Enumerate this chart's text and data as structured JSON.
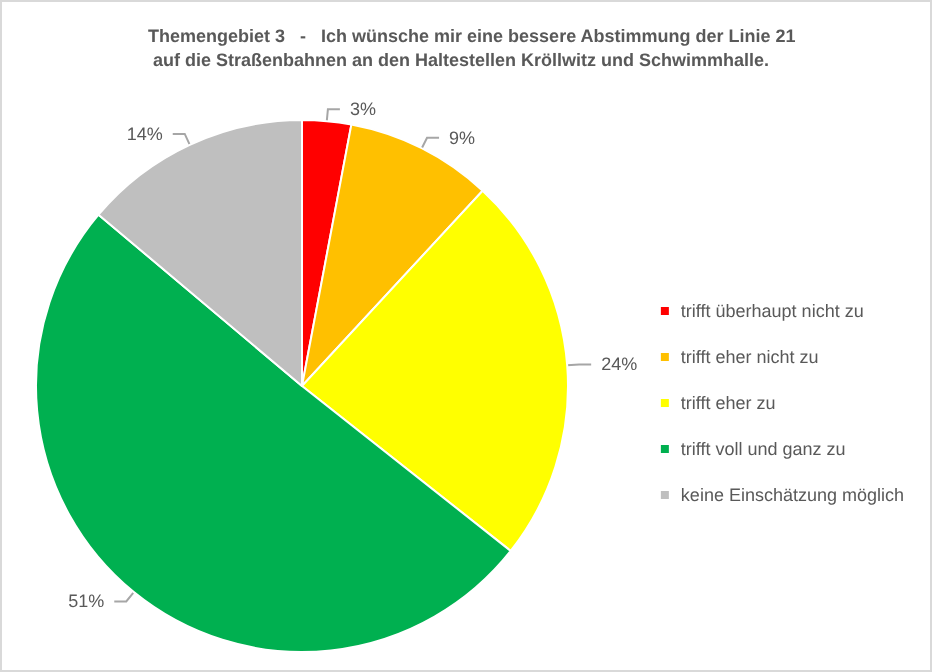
{
  "chart_data": {
    "type": "pie",
    "title": "Themengebiet 3   -   Ich wünsche mir eine bessere Abstimmung der Linie 21 auf die Straßenbahnen an den Haltestellen Kröllwitz und Schwimmhalle.",
    "categories": [
      "trifft überhaupt nicht zu",
      "trifft eher nicht zu",
      "trifft eher zu",
      "trifft voll und ganz zu",
      "keine Einschätzung möglich"
    ],
    "values": [
      3,
      9,
      24,
      51,
      14
    ],
    "value_labels": [
      "3%",
      "9%",
      "24%",
      "51%",
      "14%"
    ],
    "colors": [
      "#ff0000",
      "#ffc000",
      "#ffff00",
      "#00b050",
      "#bfbfbf"
    ],
    "legend": "right"
  }
}
